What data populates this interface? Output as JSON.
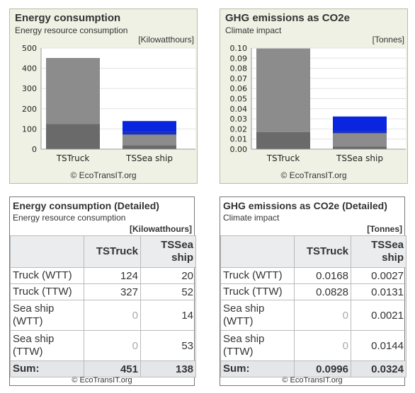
{
  "chart_data": [
    {
      "type": "bar",
      "stacked": true,
      "title": "Energy consumption",
      "subtitle": "Energy resource consumption",
      "unit": "[Kilowatthours]",
      "credit": "© EcoTransIT.org",
      "categories": [
        "TSTruck",
        "TSSea ship"
      ],
      "series": [
        {
          "values": [
            124,
            20
          ],
          "color": "#6a6a6a"
        },
        {
          "values": [
            327,
            52
          ],
          "color": "#8c8c8c"
        },
        {
          "values": [
            0,
            14
          ],
          "color": "#1a2fb8"
        },
        {
          "values": [
            0,
            53
          ],
          "color": "#0a25e0"
        }
      ],
      "yticks": [
        "0",
        "100",
        "200",
        "300",
        "400",
        "500"
      ],
      "ylim": [
        0,
        500
      ]
    },
    {
      "type": "bar",
      "stacked": true,
      "title": "GHG emissions as CO2e",
      "subtitle": "Climate impact",
      "unit": "[Tonnes]",
      "credit": "© EcoTransIT.org",
      "categories": [
        "TSTruck",
        "TSSea ship"
      ],
      "series": [
        {
          "values": [
            0.0168,
            0.0027
          ],
          "color": "#6a6a6a"
        },
        {
          "values": [
            0.0828,
            0.0131
          ],
          "color": "#8c8c8c"
        },
        {
          "values": [
            0,
            0.0021
          ],
          "color": "#1a2fb8"
        },
        {
          "values": [
            0,
            0.0144
          ],
          "color": "#0a25e0"
        }
      ],
      "yticks": [
        "0.00",
        "0.01",
        "0.02",
        "0.03",
        "0.04",
        "0.05",
        "0.06",
        "0.07",
        "0.08",
        "0.09",
        "0.10"
      ],
      "ylim": [
        0,
        0.1
      ]
    }
  ],
  "tables": [
    {
      "title": "Energy consumption (Detailed)",
      "subtitle": "Energy resource consumption",
      "unit": "[Kilowatthours]",
      "col1": "TSTruck",
      "col2_line1": "TSSea",
      "col2_line2": "ship",
      "rows": [
        {
          "l1": "Truck (WTT)",
          "l2": "",
          "v1": "124",
          "v2": "20"
        },
        {
          "l1": "Truck (TTW)",
          "l2": "",
          "v1": "327",
          "v2": "52"
        },
        {
          "l1": "Sea ship",
          "l2": "(WTT)",
          "v1": "0",
          "v2": "14"
        },
        {
          "l1": "Sea ship",
          "l2": "(TTW)",
          "v1": "0",
          "v2": "53"
        }
      ],
      "sum_label": "Sum:",
      "sum1": "451",
      "sum2": "138",
      "credit": "© EcoTransIT.org"
    },
    {
      "title": "GHG emissions as CO2e (Detailed)",
      "subtitle": "Climate impact",
      "unit": "[Tonnes]",
      "col1": "TSTruck",
      "col2_line1": "TSSea",
      "col2_line2": "ship",
      "rows": [
        {
          "l1": "Truck (WTT)",
          "l2": "",
          "v1": "0.0168",
          "v2": "0.0027"
        },
        {
          "l1": "Truck (TTW)",
          "l2": "",
          "v1": "0.0828",
          "v2": "0.0131"
        },
        {
          "l1": "Sea ship",
          "l2": "(WTT)",
          "v1": "0",
          "v2": "0.0021"
        },
        {
          "l1": "Sea ship",
          "l2": "(TTW)",
          "v1": "0",
          "v2": "0.0144"
        }
      ],
      "sum_label": "Sum:",
      "sum1": "0.0996",
      "sum2": "0.0324",
      "credit": "© EcoTransIT.org"
    }
  ]
}
